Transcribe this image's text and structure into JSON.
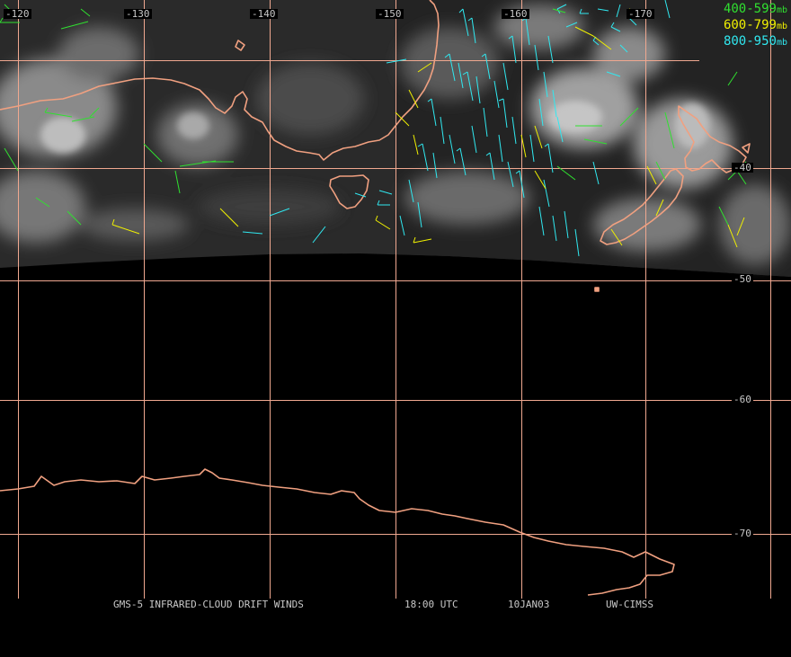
{
  "map": {
    "longitude_labels": [
      "-120",
      "-130",
      "-140",
      "-150",
      "-160",
      "-170"
    ],
    "latitude_labels": [
      "-40",
      "-50",
      "-60",
      "-70"
    ]
  },
  "legend": [
    {
      "range": "400-599",
      "unit": "mb",
      "color": "#30e030"
    },
    {
      "range": "600-799",
      "unit": "mb",
      "color": "#f0f000"
    },
    {
      "range": "800-950",
      "unit": "mb",
      "color": "#30e8f0"
    }
  ],
  "caption": {
    "product": "GMS-5 INFRARED-CLOUD DRIFT WINDS",
    "time": "18:00 UTC",
    "date": "10JAN03",
    "source": "UW-CIMSS"
  },
  "colors": {
    "background": "#000000",
    "gridlines": "#f0a890",
    "coastline": "#f0a080",
    "labels": "#c8c8c8"
  }
}
